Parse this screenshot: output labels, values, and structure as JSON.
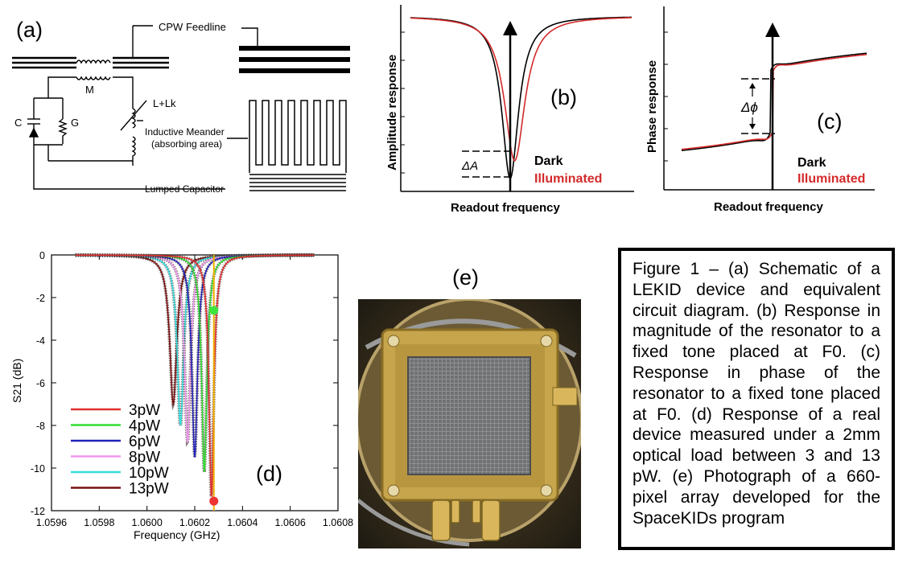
{
  "panel_labels": {
    "a": "(a)",
    "b": "(b)",
    "c": "(c)",
    "d": "(d)",
    "e": "(e)"
  },
  "schematic": {
    "cpw_feedline": "CPW Feedline",
    "mutual": "M",
    "inductance": "L+Lk",
    "capacitance": "C",
    "conductance": "G",
    "inductive_meander": "Inductive Meander",
    "absorbing_area": "(absorbing area)",
    "lumped_capacitor": "Lumped Capacitor"
  },
  "chart_data": [
    {
      "id": "b",
      "type": "line",
      "title": "",
      "xlabel": "Readout frequency",
      "ylabel": "Amplitude response",
      "annotation": "ΔA",
      "series": [
        {
          "name": "Dark",
          "color": "#000000",
          "x0": 0,
          "depth": 1.0,
          "width": 0.09
        },
        {
          "name": "Illuminated",
          "color": "#d42a2a",
          "x0": 0.04,
          "depth": 0.89,
          "width": 0.11
        }
      ]
    },
    {
      "id": "c",
      "type": "line",
      "title": "",
      "xlabel": "Readout frequency",
      "ylabel": "Phase response",
      "annotation": "Δϕ",
      "series": [
        {
          "name": "Dark",
          "color": "#000000"
        },
        {
          "name": "Illuminated",
          "color": "#d42a2a"
        }
      ]
    },
    {
      "id": "d",
      "type": "line",
      "xlabel": "Frequency (GHz)",
      "ylabel": "S21 (dB)",
      "xlim": [
        1.0596,
        1.0608
      ],
      "ylim": [
        -12,
        0
      ],
      "x_ticks": [
        "1.0596",
        "1.0598",
        "1.0600",
        "1.0602",
        "1.0604",
        "1.0606",
        "1.0608"
      ],
      "x_tick_values": [
        1.0596,
        1.0598,
        1.06,
        1.0602,
        1.0604,
        1.0606,
        1.0608
      ],
      "y_ticks": [
        "0",
        "-2",
        "-4",
        "-6",
        "-8",
        "-10",
        "-12"
      ],
      "y_tick_values": [
        0,
        -2,
        -4,
        -6,
        -8,
        -10,
        -12
      ],
      "readout_tone": 1.06028,
      "markers": [
        {
          "x": 1.06028,
          "y": -2.6,
          "color": "#3ee53e"
        },
        {
          "x": 1.06028,
          "y": -11.55,
          "color": "#ee3333"
        }
      ],
      "series": [
        {
          "name": "3pW",
          "color": "#e23030",
          "f0": 1.06027,
          "depth": -11.4,
          "width": 1.2e-05
        },
        {
          "name": "4pW",
          "color": "#33dd33",
          "f0": 1.06024,
          "depth": -10.2,
          "width": 1.3e-05
        },
        {
          "name": "6pW",
          "color": "#2222bb",
          "f0": 1.0602,
          "depth": -9.5,
          "width": 1.4e-05
        },
        {
          "name": "8pW",
          "color": "#ee99ee",
          "f0": 1.06017,
          "depth": -8.8,
          "width": 1.5e-05
        },
        {
          "name": "10pW",
          "color": "#33dddd",
          "f0": 1.06014,
          "depth": -8.0,
          "width": 1.6e-05
        },
        {
          "name": "13pW",
          "color": "#7a1010",
          "f0": 1.06011,
          "depth": -7.0,
          "width": 1.8e-05
        }
      ]
    }
  ],
  "legend_b": {
    "dark": "Dark",
    "illuminated": "Illuminated"
  },
  "legend_c": {
    "dark": "Dark",
    "illuminated": "Illuminated"
  },
  "caption": "Figure 1 – (a) Schematic of a LEKID device and equivalent circuit diagram. (b) Response in magnitude of the resonator to a fixed tone placed at F0. (c) Response in phase of the resonator to a fixed tone placed at F0. (d) Response of a real device measured under a 2mm optical load between 3 and 13 pW. (e) Photograph of a 660-pixel array developed for the SpaceKIDs program"
}
